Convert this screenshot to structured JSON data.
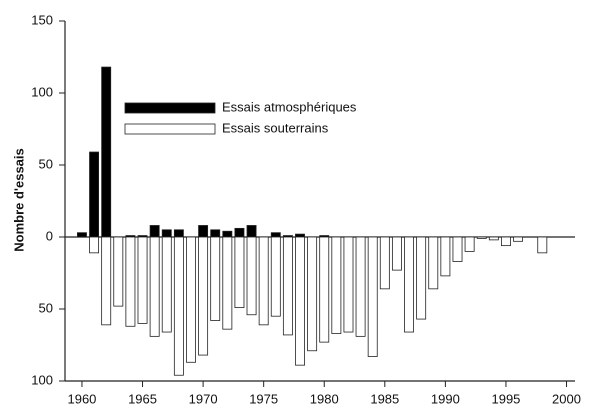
{
  "chart_data": {
    "type": "bar",
    "y_label": "Nombre d'essais",
    "x": [
      1960,
      1961,
      1962,
      1963,
      1964,
      1965,
      1966,
      1967,
      1968,
      1969,
      1970,
      1971,
      1972,
      1973,
      1974,
      1975,
      1976,
      1977,
      1978,
      1979,
      1980,
      1981,
      1982,
      1983,
      1984,
      1985,
      1986,
      1987,
      1988,
      1989,
      1990,
      1991,
      1992,
      1993,
      1994,
      1995,
      1996,
      1997,
      1998,
      1999
    ],
    "series": [
      {
        "name": "Essais atmosphériques",
        "color": "#000000",
        "values": [
          3,
          59,
          118,
          0,
          1,
          1,
          8,
          5,
          5,
          0,
          8,
          5,
          4,
          6,
          8,
          0,
          3,
          1,
          2,
          0,
          1,
          0,
          0,
          0,
          0,
          0,
          0,
          0,
          0,
          0,
          0,
          0,
          0,
          0,
          0,
          0,
          0,
          0,
          0,
          0
        ]
      },
      {
        "name": "Essais souterrains",
        "color": "#ffffff",
        "values": [
          0,
          -11,
          -61,
          -48,
          -62,
          -60,
          -69,
          -66,
          -96,
          -87,
          -82,
          -58,
          -64,
          -49,
          -54,
          -61,
          -55,
          -68,
          -89,
          -79,
          -73,
          -67,
          -66,
          -69,
          -83,
          -36,
          -23,
          -66,
          -57,
          -36,
          -27,
          -17,
          -10,
          -1,
          -2,
          -6,
          -3,
          0,
          -11,
          0
        ]
      }
    ],
    "xlim": [
      1958.6,
      2000.7
    ],
    "xticks": [
      1960,
      1965,
      1970,
      1975,
      1980,
      1985,
      1990,
      1995,
      2000
    ],
    "ylim": [
      -100,
      150
    ],
    "yticks": [
      {
        "value": -100,
        "label": "100"
      },
      {
        "value": -50,
        "label": "50"
      },
      0,
      50,
      100,
      150
    ],
    "legend": "upper left"
  }
}
